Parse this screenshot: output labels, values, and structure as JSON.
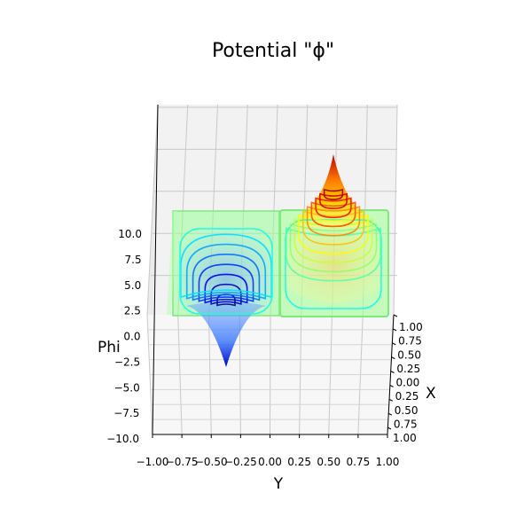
{
  "chart_data": {
    "type": "surface3d",
    "title": "Potential \"ϕ\"",
    "xlabel": "X",
    "ylabel": "Y",
    "zlabel": "Phi",
    "xlim": [
      -1.0,
      1.0
    ],
    "ylim": [
      -1.0,
      1.0
    ],
    "zlim": [
      -10.0,
      12.0
    ],
    "x_ticks": [
      "1.00",
      "0.75",
      "0.50",
      "0.25",
      "0.00",
      "0.25",
      "0.50",
      "0.75",
      "1.00"
    ],
    "y_ticks": [
      "−1.00",
      "−0.75",
      "−0.50",
      "−0.25",
      "0.00",
      "0.25",
      "0.50",
      "0.75",
      "1.00"
    ],
    "z_ticks": [
      "−10.0",
      "−7.5",
      "−5.0",
      "−2.5",
      "0.0",
      "2.5",
      "5.0",
      "7.5",
      "10.0"
    ],
    "colormap": "jet",
    "grid": true,
    "series": [
      {
        "name": "",
        "center_y": -0.5,
        "center_x": 0.0,
        "peak": -7.0,
        "color": "#0000c8"
      },
      {
        "name": "",
        "center_y": 0.5,
        "center_x": 0.0,
        "peak": 10.5,
        "color": "#c80000"
      }
    ],
    "contour_levels": [
      -7.0,
      -6.0,
      -5.0,
      -4.0,
      -3.0,
      -2.0,
      -1.0,
      0.0,
      1.0,
      2.0,
      3.0,
      4.0,
      5.0,
      6.0,
      7.0,
      8.0,
      9.0,
      10.0
    ],
    "floor_color": "#80ff80"
  }
}
